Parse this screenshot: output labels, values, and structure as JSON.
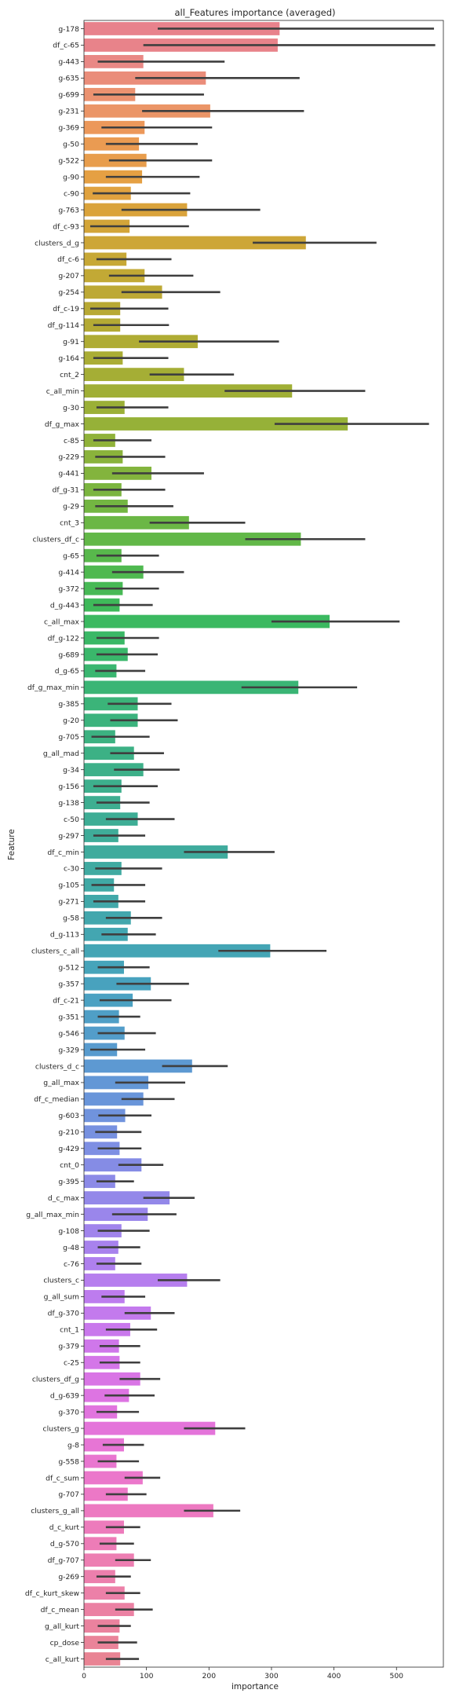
{
  "chart_data": {
    "type": "bar",
    "orientation": "horizontal",
    "title": "all_Features importance (averaged)",
    "xlabel": "importance",
    "ylabel": "Feature",
    "xlim": [
      0,
      575
    ],
    "xticks": [
      0,
      100,
      200,
      300,
      400,
      500
    ],
    "grid": false,
    "legend": "none",
    "palette": "seaborn husl-like gradient (pink → orange → olive → green → teal → blue → violet → pink)",
    "categories": [
      "g-178",
      "df_c-65",
      "g-443",
      "g-635",
      "g-699",
      "g-231",
      "g-369",
      "g-50",
      "g-522",
      "g-90",
      "c-90",
      "g-763",
      "df_c-93",
      "clusters_d_g",
      "df_c-6",
      "g-207",
      "g-254",
      "df_c-19",
      "df_g-114",
      "g-91",
      "g-164",
      "cnt_2",
      "c_all_min",
      "g-30",
      "df_g_max",
      "c-85",
      "g-229",
      "g-441",
      "df_g-31",
      "g-29",
      "cnt_3",
      "clusters_df_c",
      "g-65",
      "g-414",
      "g-372",
      "d_g-443",
      "c_all_max",
      "df_g-122",
      "g-689",
      "d_g-65",
      "df_g_max_min",
      "g-385",
      "g-20",
      "g-705",
      "g_all_mad",
      "g-34",
      "g-156",
      "g-138",
      "c-50",
      "g-297",
      "df_c_min",
      "c-30",
      "g-105",
      "g-271",
      "g-58",
      "d_g-113",
      "clusters_c_all",
      "g-512",
      "g-357",
      "df_c-21",
      "g-351",
      "g-546",
      "g-329",
      "clusters_d_c",
      "g_all_max",
      "df_c_median",
      "g-603",
      "g-210",
      "g-429",
      "cnt_0",
      "g-395",
      "d_c_max",
      "g_all_max_min",
      "g-108",
      "g-48",
      "c-76",
      "clusters_c",
      "g_all_sum",
      "df_g-370",
      "cnt_1",
      "g-379",
      "c-25",
      "clusters_df_g",
      "d_g-639",
      "g-370",
      "clusters_g",
      "g-8",
      "g-558",
      "df_c_sum",
      "g-707",
      "clusters_g_all",
      "d_c_kurt",
      "d_g-570",
      "df_g-707",
      "g-269",
      "df_c_kurt_skew",
      "df_c_mean",
      "g_all_kurt",
      "cp_dose",
      "c_all_kurt"
    ],
    "values": [
      313,
      310,
      95,
      195,
      82,
      202,
      97,
      88,
      100,
      93,
      75,
      165,
      73,
      355,
      68,
      97,
      125,
      58,
      58,
      182,
      62,
      160,
      333,
      65,
      422,
      50,
      62,
      108,
      60,
      70,
      168,
      347,
      60,
      95,
      62,
      57,
      393,
      65,
      70,
      52,
      343,
      86,
      86,
      50,
      80,
      95,
      60,
      58,
      86,
      55,
      230,
      60,
      48,
      55,
      75,
      70,
      298,
      64,
      107,
      78,
      56,
      65,
      53,
      173,
      103,
      95,
      66,
      53,
      57,
      92,
      50,
      137,
      102,
      60,
      55,
      50,
      165,
      65,
      107,
      74,
      56,
      57,
      90,
      72,
      53,
      210,
      64,
      52,
      94,
      70,
      207,
      64,
      52,
      80,
      50,
      65,
      80,
      57,
      55,
      58
    ],
    "errors": [
      [
        118,
        560
      ],
      [
        95,
        562
      ],
      [
        22,
        225
      ],
      [
        82,
        345
      ],
      [
        15,
        192
      ],
      [
        93,
        352
      ],
      [
        28,
        205
      ],
      [
        35,
        182
      ],
      [
        40,
        205
      ],
      [
        35,
        185
      ],
      [
        14,
        170
      ],
      [
        60,
        282
      ],
      [
        10,
        168
      ],
      [
        270,
        468
      ],
      [
        20,
        140
      ],
      [
        40,
        175
      ],
      [
        60,
        218
      ],
      [
        10,
        135
      ],
      [
        15,
        136
      ],
      [
        88,
        312
      ],
      [
        15,
        135
      ],
      [
        105,
        240
      ],
      [
        225,
        450
      ],
      [
        20,
        135
      ],
      [
        305,
        552
      ],
      [
        15,
        108
      ],
      [
        18,
        130
      ],
      [
        45,
        192
      ],
      [
        15,
        130
      ],
      [
        18,
        143
      ],
      [
        105,
        258
      ],
      [
        258,
        450
      ],
      [
        20,
        120
      ],
      [
        45,
        160
      ],
      [
        18,
        120
      ],
      [
        15,
        110
      ],
      [
        300,
        505
      ],
      [
        20,
        120
      ],
      [
        20,
        118
      ],
      [
        18,
        98
      ],
      [
        252,
        437
      ],
      [
        38,
        140
      ],
      [
        42,
        150
      ],
      [
        12,
        105
      ],
      [
        42,
        128
      ],
      [
        48,
        153
      ],
      [
        15,
        118
      ],
      [
        20,
        105
      ],
      [
        35,
        145
      ],
      [
        15,
        98
      ],
      [
        160,
        305
      ],
      [
        18,
        125
      ],
      [
        12,
        98
      ],
      [
        15,
        98
      ],
      [
        35,
        125
      ],
      [
        28,
        115
      ],
      [
        215,
        388
      ],
      [
        22,
        105
      ],
      [
        52,
        168
      ],
      [
        25,
        140
      ],
      [
        22,
        90
      ],
      [
        22,
        115
      ],
      [
        10,
        98
      ],
      [
        125,
        230
      ],
      [
        50,
        162
      ],
      [
        60,
        145
      ],
      [
        23,
        108
      ],
      [
        18,
        92
      ],
      [
        22,
        92
      ],
      [
        55,
        127
      ],
      [
        20,
        80
      ],
      [
        95,
        177
      ],
      [
        45,
        148
      ],
      [
        22,
        105
      ],
      [
        22,
        90
      ],
      [
        20,
        92
      ],
      [
        118,
        218
      ],
      [
        28,
        98
      ],
      [
        65,
        145
      ],
      [
        35,
        117
      ],
      [
        25,
        90
      ],
      [
        25,
        90
      ],
      [
        57,
        122
      ],
      [
        33,
        113
      ],
      [
        20,
        88
      ],
      [
        160,
        258
      ],
      [
        30,
        96
      ],
      [
        22,
        88
      ],
      [
        65,
        122
      ],
      [
        35,
        100
      ],
      [
        160,
        250
      ],
      [
        35,
        90
      ],
      [
        25,
        80
      ],
      [
        50,
        107
      ],
      [
        20,
        75
      ],
      [
        35,
        90
      ],
      [
        50,
        110
      ],
      [
        22,
        75
      ],
      [
        22,
        85
      ],
      [
        35,
        88
      ]
    ],
    "colors": [
      "#e8828c",
      "#e8838a",
      "#e98885",
      "#ea8d7a",
      "#eb9270",
      "#eb9567",
      "#ec985a",
      "#ea9b52",
      "#e89d4c",
      "#e5a043",
      "#e0a23f",
      "#daa33b",
      "#d3a539",
      "#cda637",
      "#c7a836",
      "#c2a935",
      "#bda935",
      "#b8a934",
      "#b4aa34",
      "#afac34",
      "#aaad35",
      "#a5ae35",
      "#a0af36",
      "#9bb037",
      "#96b138",
      "#90b239",
      "#8ab33b",
      "#83b43d",
      "#7bb53f",
      "#73b642",
      "#6bb745",
      "#62b848",
      "#58b84c",
      "#4fb950",
      "#47b955",
      "#3fb95a",
      "#3bb960",
      "#3ab866",
      "#3ab76b",
      "#3ab670",
      "#3ab575",
      "#3bb479",
      "#3bb37d",
      "#3cb281",
      "#3cb185",
      "#3db089",
      "#3daf8d",
      "#3eae91",
      "#3ead95",
      "#3fac99",
      "#3fab9d",
      "#40aaa1",
      "#40a9a5",
      "#41a8a9",
      "#42a7ad",
      "#43a6b1",
      "#44a5b5",
      "#46a4ba",
      "#48a2be",
      "#4ba1c2",
      "#4f9fc6",
      "#539dca",
      "#589bce",
      "#5d99d2",
      "#6397d6",
      "#6995da",
      "#7093dd",
      "#7791e0",
      "#7e8fe3",
      "#858ce5",
      "#8c8ae7",
      "#9388e9",
      "#9a86eb",
      "#a184ec",
      "#a882ed",
      "#af80ee",
      "#b67eee",
      "#bd7cee",
      "#c37aed",
      "#c978ec",
      "#cf77ea",
      "#d476e8",
      "#d975e5",
      "#dd74e2",
      "#e174de",
      "#e474da",
      "#e775d5",
      "#e976d0",
      "#eb77cb",
      "#ec78c6",
      "#ed79c1",
      "#ed7bbc",
      "#ed7cb7",
      "#ed7eb2",
      "#ec7fad",
      "#ec80a8",
      "#eb81a3",
      "#ea829e",
      "#ea8399",
      "#e98494"
    ]
  }
}
